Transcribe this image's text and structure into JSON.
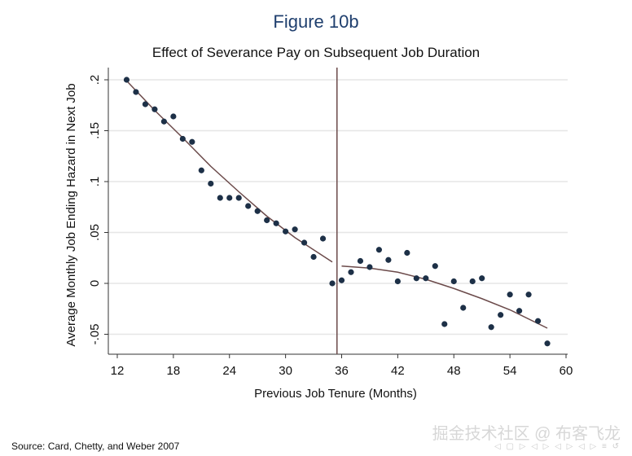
{
  "figure_title": "Figure 10b",
  "source_text": "Source:  Card, Chetty, and Weber 2007",
  "watermark": "掘金技术社区 @ 布客飞龙",
  "nav_glyphs": "◁ ▢ ▷ ◁ ▷ ◁ ▷ ◁ ▷ ≡ ↺",
  "chart_data": {
    "type": "scatter",
    "title": "Effect of Severance Pay on Subsequent Job Duration",
    "xlabel": "Previous Job Tenure (Months)",
    "ylabel": "Average Monthly Job Ending Hazard in Next Job",
    "xlim": [
      11,
      61
    ],
    "ylim": [
      -0.068,
      0.21
    ],
    "xticks": [
      12,
      18,
      24,
      30,
      36,
      42,
      48,
      54,
      60
    ],
    "yticks": [
      -0.05,
      0,
      0.05,
      0.1,
      0.15,
      0.2
    ],
    "ytick_labels": [
      "-.05",
      "0",
      ".05",
      ".1",
      ".15",
      ".2"
    ],
    "grid": true,
    "cutoff": 35.5,
    "point_color": "#1d3047",
    "line_color": "#6b4a4a",
    "series": [
      {
        "name": "observed",
        "x": [
          13,
          14,
          15,
          16,
          17,
          18,
          19,
          20,
          21,
          22,
          23,
          24,
          25,
          26,
          27,
          28,
          29,
          30,
          31,
          32,
          33,
          34,
          35,
          36,
          37,
          38,
          39,
          40,
          41,
          42,
          43,
          44,
          45,
          46,
          47,
          48,
          49,
          50,
          51,
          52,
          53,
          54,
          55,
          56,
          57,
          58
        ],
        "y": [
          0.2,
          0.188,
          0.176,
          0.171,
          0.159,
          0.164,
          0.142,
          0.139,
          0.111,
          0.098,
          0.084,
          0.084,
          0.084,
          0.076,
          0.071,
          0.062,
          0.059,
          0.051,
          0.053,
          0.04,
          0.026,
          0.044,
          0.0,
          0.003,
          0.011,
          0.022,
          0.016,
          0.033,
          0.023,
          0.002,
          0.03,
          0.005,
          0.005,
          0.017,
          -0.04,
          0.002,
          -0.024,
          0.002,
          0.005,
          -0.043,
          -0.031,
          -0.011,
          -0.027,
          -0.011,
          -0.037,
          -0.059
        ]
      }
    ],
    "fits": [
      {
        "name": "fit-left",
        "x": [
          13,
          16,
          19,
          22,
          25,
          28,
          31,
          35
        ],
        "y": [
          0.199,
          0.17,
          0.143,
          0.115,
          0.09,
          0.066,
          0.045,
          0.021
        ]
      },
      {
        "name": "fit-right",
        "x": [
          36,
          39,
          42,
          45,
          48,
          51,
          54,
          58
        ],
        "y": [
          0.017,
          0.015,
          0.011,
          0.004,
          -0.005,
          -0.015,
          -0.026,
          -0.044
        ]
      }
    ]
  }
}
